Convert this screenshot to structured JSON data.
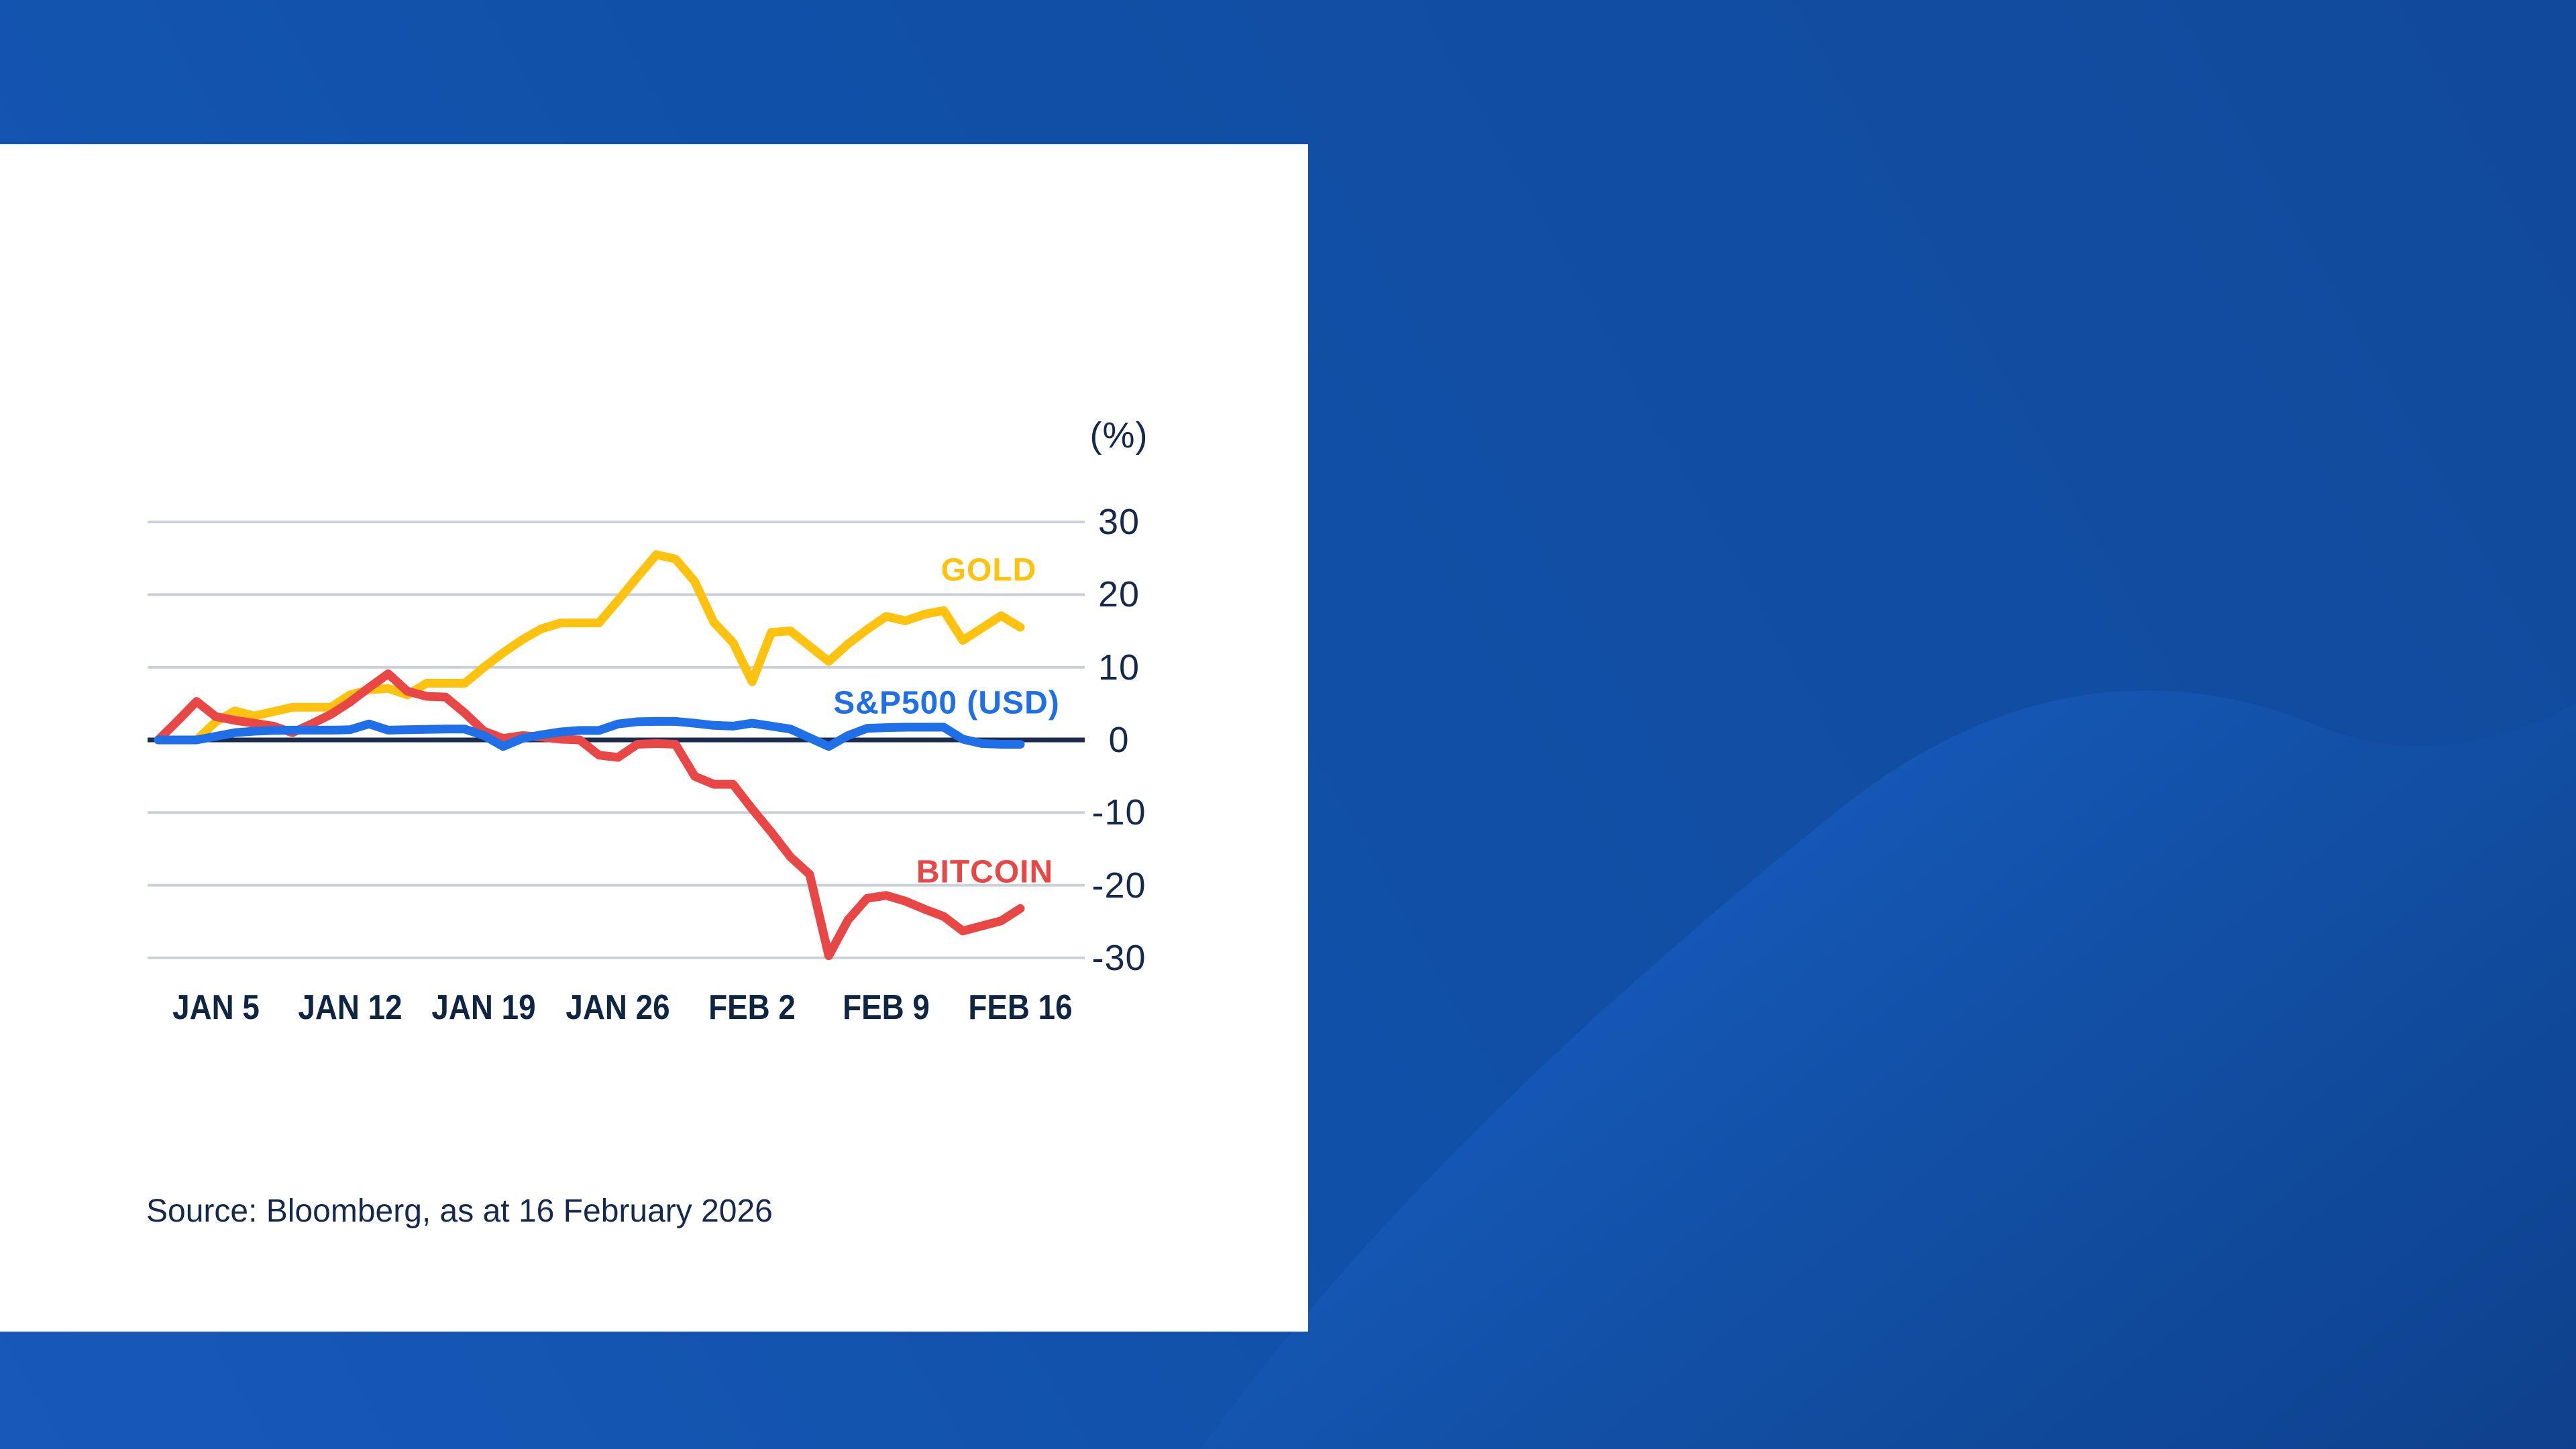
{
  "card": {
    "background": "#FFFFFF",
    "source_note": "Source: Bloomberg, as at 16 February 2026"
  },
  "background": {
    "base_color_bottom_left": "#1659B8",
    "base_color_mid": "#1150A8",
    "base_color_top_right": "#114A9C",
    "wave_color_light": "#1558B6",
    "wave_color_mid": "#114C9F",
    "wave_color_dark": "#0E418D"
  },
  "chart_data": {
    "type": "line",
    "title": "",
    "unit_label": "(%)",
    "xlabel": "",
    "ylabel": "(%)",
    "grid": true,
    "grid_color": "#CBD0D8",
    "zero_line_color": "#1B2C4E",
    "axis_text_color": "#15294E",
    "xtick_text_color": "#0F2544",
    "yticks": [
      30,
      20,
      10,
      0,
      -10,
      -20,
      -30
    ],
    "ylim": [
      -33,
      33
    ],
    "xtick_labels": [
      "JAN 5",
      "JAN 12",
      "JAN 19",
      "JAN 26",
      "FEB 2",
      "FEB 9",
      "FEB 16"
    ],
    "xtick_indices": [
      3,
      10,
      17,
      24,
      31,
      38,
      45
    ],
    "legend_position": "inline-right",
    "x": [
      "Jan 2",
      "Jan 3",
      "Jan 4",
      "Jan 5",
      "Jan 6",
      "Jan 7",
      "Jan 8",
      "Jan 9",
      "Jan 10",
      "Jan 11",
      "Jan 12",
      "Jan 13",
      "Jan 14",
      "Jan 15",
      "Jan 16",
      "Jan 17",
      "Jan 18",
      "Jan 19",
      "Jan 20",
      "Jan 21",
      "Jan 22",
      "Jan 23",
      "Jan 24",
      "Jan 25",
      "Jan 26",
      "Jan 27",
      "Jan 28",
      "Jan 29",
      "Jan 30",
      "Jan 31",
      "Feb 1",
      "Feb 2",
      "Feb 3",
      "Feb 4",
      "Feb 5",
      "Feb 6",
      "Feb 7",
      "Feb 8",
      "Feb 9",
      "Feb 10",
      "Feb 11",
      "Feb 12",
      "Feb 13",
      "Feb 14",
      "Feb 15",
      "Feb 16"
    ],
    "series": [
      {
        "name": "GOLD",
        "color": "#FFC20E",
        "values": [
          0,
          0,
          0,
          2.5,
          4.0,
          3.3,
          3.9,
          4.5,
          4.5,
          4.5,
          6.2,
          6.9,
          7.1,
          6.2,
          7.8,
          7.8,
          7.8,
          10.0,
          12.0,
          13.8,
          15.3,
          16.1,
          16.1,
          16.1,
          19.2,
          22.4,
          25.5,
          24.9,
          21.8,
          16.2,
          13.4,
          8.0,
          14.8,
          15.0,
          12.9,
          10.8,
          13.2,
          15.2,
          17.0,
          16.4,
          17.3,
          17.8,
          13.7,
          15.4,
          17.1,
          15.5
        ]
      },
      {
        "name": "S&P500 (USD)",
        "color": "#1E6FE8",
        "values": [
          0,
          0,
          0,
          0.5,
          1.0,
          1.2,
          1.3,
          1.35,
          1.35,
          1.35,
          1.4,
          2.2,
          1.35,
          1.4,
          1.45,
          1.5,
          1.5,
          0.6,
          -0.9,
          0.2,
          0.7,
          1.1,
          1.3,
          1.3,
          2.2,
          2.5,
          2.55,
          2.55,
          2.3,
          2.0,
          1.9,
          2.3,
          1.9,
          1.5,
          0.3,
          -0.9,
          0.6,
          1.6,
          1.7,
          1.75,
          1.75,
          1.75,
          0.1,
          -0.5,
          -0.6,
          -0.6
        ]
      },
      {
        "name": "BITCOIN",
        "color": "#E94745",
        "values": [
          0,
          2.6,
          5.3,
          3.2,
          2.7,
          2.3,
          1.9,
          1.0,
          2.2,
          3.5,
          5.2,
          7.2,
          9.1,
          6.7,
          6.0,
          5.9,
          3.7,
          1.2,
          0.2,
          0.6,
          0.4,
          0.1,
          0.0,
          -2.1,
          -2.4,
          -0.6,
          -0.5,
          -0.6,
          -5.0,
          -6.1,
          -6.1,
          -9.5,
          -12.7,
          -16.1,
          -18.5,
          -29.7,
          -24.8,
          -21.8,
          -21.4,
          -22.2,
          -23.3,
          -24.3,
          -26.3,
          -25.6,
          -24.9,
          -23.2
        ]
      }
    ]
  }
}
